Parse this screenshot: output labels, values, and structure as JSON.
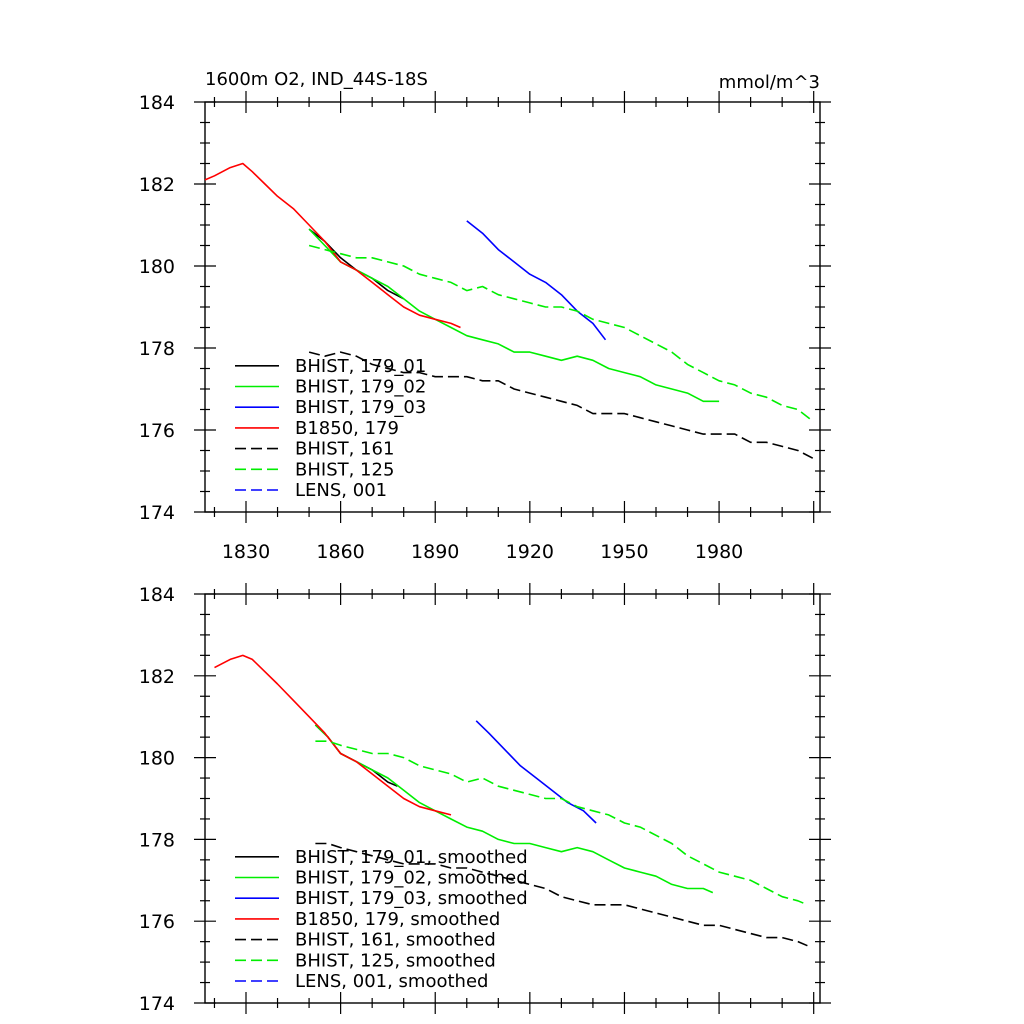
{
  "chart_data": [
    {
      "type": "line",
      "title": "1600m O2, IND_44S-18S",
      "units": "mmol/m^3",
      "xlabel": "",
      "ylabel": "",
      "xlim": [
        1817,
        2012
      ],
      "ylim": [
        174,
        184
      ],
      "x_ticks": [
        1830,
        1860,
        1890,
        1920,
        1950,
        1980
      ],
      "y_ticks": [
        174,
        176,
        178,
        180,
        182,
        184
      ],
      "show_x_tick_labels": true,
      "legend_position": "bottom-left",
      "series": [
        {
          "name": "BHIST, 179_01",
          "color": "#000000",
          "dash": "solid",
          "x": [
            1850,
            1855,
            1860,
            1865,
            1870,
            1875,
            1880
          ],
          "y": [
            180.9,
            180.6,
            180.2,
            179.9,
            179.7,
            179.4,
            179.2
          ]
        },
        {
          "name": "BHIST, 179_02",
          "color": "#00ee00",
          "dash": "solid",
          "x": [
            1850,
            1855,
            1860,
            1865,
            1870,
            1875,
            1880,
            1885,
            1890,
            1895,
            1900,
            1905,
            1910,
            1915,
            1920,
            1925,
            1930,
            1935,
            1940,
            1945,
            1950,
            1955,
            1960,
            1965,
            1970,
            1975,
            1980
          ],
          "y": [
            180.9,
            180.5,
            180.1,
            179.9,
            179.7,
            179.5,
            179.2,
            178.9,
            178.7,
            178.5,
            178.3,
            178.2,
            178.1,
            177.9,
            177.9,
            177.8,
            177.7,
            177.8,
            177.7,
            177.5,
            177.4,
            177.3,
            177.1,
            177.0,
            176.9,
            176.7,
            176.7
          ]
        },
        {
          "name": "BHIST, 179_03",
          "color": "#0000ff",
          "dash": "solid",
          "x": [
            1900,
            1905,
            1910,
            1915,
            1920,
            1925,
            1930,
            1935,
            1940,
            1944
          ],
          "y": [
            181.1,
            180.8,
            180.4,
            180.1,
            179.8,
            179.6,
            179.3,
            178.9,
            178.6,
            178.2
          ]
        },
        {
          "name": "B1850, 179",
          "color": "#ff0000",
          "dash": "solid",
          "x": [
            1817,
            1820,
            1825,
            1829,
            1832,
            1836,
            1840,
            1845,
            1850,
            1855,
            1860,
            1865,
            1870,
            1875,
            1880,
            1885,
            1890,
            1895,
            1898
          ],
          "y": [
            182.1,
            182.2,
            182.4,
            182.5,
            182.3,
            182.0,
            181.7,
            181.4,
            181.0,
            180.6,
            180.1,
            179.9,
            179.6,
            179.3,
            179.0,
            178.8,
            178.7,
            178.6,
            178.5
          ]
        },
        {
          "name": "BHIST, 161",
          "color": "#000000",
          "dash": "dashed",
          "x": [
            1850,
            1855,
            1860,
            1865,
            1870,
            1875,
            1880,
            1885,
            1890,
            1895,
            1900,
            1905,
            1910,
            1915,
            1920,
            1925,
            1930,
            1935,
            1940,
            1945,
            1950,
            1955,
            1960,
            1965,
            1970,
            1975,
            1980,
            1985,
            1990,
            1995,
            2000,
            2005,
            2010
          ],
          "y": [
            177.9,
            177.8,
            177.9,
            177.8,
            177.6,
            177.5,
            177.4,
            177.4,
            177.3,
            177.3,
            177.3,
            177.2,
            177.2,
            177.0,
            176.9,
            176.8,
            176.7,
            176.6,
            176.4,
            176.4,
            176.4,
            176.3,
            176.2,
            176.1,
            176.0,
            175.9,
            175.9,
            175.9,
            175.7,
            175.7,
            175.6,
            175.5,
            175.3
          ]
        },
        {
          "name": "BHIST, 125",
          "color": "#00ee00",
          "dash": "dashed",
          "x": [
            1850,
            1855,
            1860,
            1865,
            1870,
            1875,
            1880,
            1885,
            1890,
            1895,
            1900,
            1905,
            1910,
            1915,
            1920,
            1925,
            1930,
            1935,
            1940,
            1945,
            1950,
            1955,
            1960,
            1965,
            1970,
            1975,
            1980,
            1985,
            1990,
            1995,
            2000,
            2005,
            2010
          ],
          "y": [
            180.5,
            180.4,
            180.3,
            180.2,
            180.2,
            180.1,
            180.0,
            179.8,
            179.7,
            179.6,
            179.4,
            179.5,
            179.3,
            179.2,
            179.1,
            179.0,
            179.0,
            178.9,
            178.7,
            178.6,
            178.5,
            178.3,
            178.1,
            177.9,
            177.6,
            177.4,
            177.2,
            177.1,
            176.9,
            176.8,
            176.6,
            176.5,
            176.2
          ]
        },
        {
          "name": "LENS, 001",
          "color": "#0000ff",
          "dash": "dashed",
          "x": [],
          "y": []
        }
      ]
    },
    {
      "type": "line",
      "title": "",
      "units": "",
      "xlabel": "",
      "ylabel": "",
      "xlim": [
        1817,
        2012
      ],
      "ylim": [
        174,
        184
      ],
      "x_ticks": [
        1830,
        1860,
        1890,
        1920,
        1950,
        1980
      ],
      "y_ticks": [
        174,
        176,
        178,
        180,
        182,
        184
      ],
      "show_x_tick_labels": false,
      "legend_position": "bottom-left",
      "series": [
        {
          "name": "BHIST, 179_01, smoothed",
          "color": "#000000",
          "dash": "solid",
          "x": [
            1852,
            1856,
            1860,
            1865,
            1870,
            1875,
            1878
          ],
          "y": [
            180.8,
            180.5,
            180.1,
            179.9,
            179.7,
            179.4,
            179.3
          ]
        },
        {
          "name": "BHIST, 179_02, smoothed",
          "color": "#00ee00",
          "dash": "solid",
          "x": [
            1852,
            1856,
            1860,
            1865,
            1870,
            1875,
            1880,
            1885,
            1890,
            1895,
            1900,
            1905,
            1910,
            1915,
            1920,
            1925,
            1930,
            1935,
            1940,
            1945,
            1950,
            1955,
            1960,
            1965,
            1970,
            1975,
            1978
          ],
          "y": [
            180.8,
            180.5,
            180.1,
            179.9,
            179.7,
            179.5,
            179.2,
            178.9,
            178.7,
            178.5,
            178.3,
            178.2,
            178.0,
            177.9,
            177.9,
            177.8,
            177.7,
            177.8,
            177.7,
            177.5,
            177.3,
            177.2,
            177.1,
            176.9,
            176.8,
            176.8,
            176.7
          ]
        },
        {
          "name": "BHIST, 179_03, smoothed",
          "color": "#0000ff",
          "dash": "solid",
          "x": [
            1903,
            1907,
            1912,
            1917,
            1922,
            1927,
            1932,
            1937,
            1941
          ],
          "y": [
            180.9,
            180.6,
            180.2,
            179.8,
            179.5,
            179.2,
            178.9,
            178.7,
            178.4
          ]
        },
        {
          "name": "B1850, 179, smoothed",
          "color": "#ff0000",
          "dash": "solid",
          "x": [
            1820,
            1825,
            1829,
            1832,
            1836,
            1840,
            1845,
            1850,
            1855,
            1860,
            1865,
            1870,
            1875,
            1880,
            1885,
            1890,
            1895
          ],
          "y": [
            182.2,
            182.4,
            182.5,
            182.4,
            182.1,
            181.8,
            181.4,
            181.0,
            180.6,
            180.1,
            179.9,
            179.6,
            179.3,
            179.0,
            178.8,
            178.7,
            178.6
          ]
        },
        {
          "name": "BHIST, 161, smoothed",
          "color": "#000000",
          "dash": "dashed",
          "x": [
            1852,
            1856,
            1860,
            1865,
            1870,
            1875,
            1880,
            1885,
            1890,
            1895,
            1900,
            1905,
            1910,
            1915,
            1920,
            1925,
            1930,
            1935,
            1940,
            1945,
            1950,
            1955,
            1960,
            1965,
            1970,
            1975,
            1980,
            1985,
            1990,
            1995,
            2000,
            2005,
            2008
          ],
          "y": [
            177.9,
            177.9,
            177.8,
            177.7,
            177.6,
            177.5,
            177.4,
            177.4,
            177.4,
            177.3,
            177.3,
            177.2,
            177.1,
            177.0,
            176.9,
            176.8,
            176.6,
            176.5,
            176.4,
            176.4,
            176.4,
            176.3,
            176.2,
            176.1,
            176.0,
            175.9,
            175.9,
            175.8,
            175.7,
            175.6,
            175.6,
            175.5,
            175.4
          ]
        },
        {
          "name": "BHIST, 125, smoothed",
          "color": "#00ee00",
          "dash": "dashed",
          "x": [
            1852,
            1856,
            1860,
            1865,
            1870,
            1875,
            1880,
            1885,
            1890,
            1895,
            1900,
            1905,
            1910,
            1915,
            1920,
            1925,
            1930,
            1935,
            1940,
            1945,
            1950,
            1955,
            1960,
            1965,
            1970,
            1975,
            1980,
            1985,
            1990,
            1995,
            2000,
            2005,
            2008
          ],
          "y": [
            180.4,
            180.4,
            180.3,
            180.2,
            180.1,
            180.1,
            180.0,
            179.8,
            179.7,
            179.6,
            179.4,
            179.5,
            179.3,
            179.2,
            179.1,
            179.0,
            179.0,
            178.8,
            178.7,
            178.6,
            178.4,
            178.3,
            178.1,
            177.9,
            177.6,
            177.4,
            177.2,
            177.1,
            177.0,
            176.8,
            176.6,
            176.5,
            176.4
          ]
        },
        {
          "name": "LENS, 001, smoothed",
          "color": "#0000ff",
          "dash": "dashed",
          "x": [],
          "y": []
        }
      ]
    }
  ]
}
